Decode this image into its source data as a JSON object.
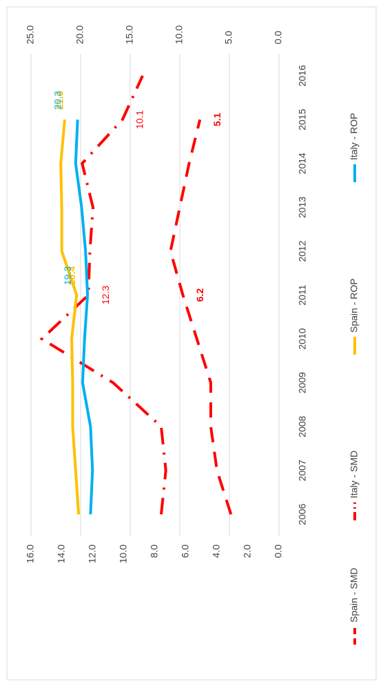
{
  "chart_data": {
    "type": "line",
    "categories": [
      "2006",
      "2007",
      "2008",
      "2009",
      "2010",
      "2011",
      "2012",
      "2013",
      "2014",
      "2015",
      "2016"
    ],
    "series": [
      {
        "name": "Spain - SMD",
        "color": "#ff0000",
        "dash": "dashed",
        "axis": "y",
        "values": [
          3.1,
          4.0,
          4.4,
          4.4,
          5.3,
          6.2,
          7.0,
          6.4,
          5.8,
          5.1,
          null
        ],
        "value_labels": [
          null,
          null,
          null,
          null,
          null,
          "6.2",
          null,
          null,
          null,
          "5.1",
          null
        ]
      },
      {
        "name": "Italy - SMD",
        "color": "#ff0000",
        "dash": "dashdot",
        "axis": "y",
        "values": [
          7.6,
          7.3,
          7.6,
          10.7,
          15.3,
          12.3,
          12.2,
          12.0,
          12.7,
          10.1,
          8.8
        ],
        "value_labels": [
          null,
          null,
          null,
          null,
          null,
          "12.3",
          null,
          null,
          null,
          "10.1",
          null
        ]
      },
      {
        "name": "Spain - ROP",
        "color": "#ffc000",
        "dash": "solid",
        "axis": "y2",
        "values": [
          20.2,
          20.5,
          20.8,
          20.8,
          20.9,
          20.4,
          21.9,
          21.9,
          22.0,
          21.6,
          null
        ],
        "value_labels": [
          null,
          null,
          null,
          null,
          null,
          "20.4",
          null,
          null,
          null,
          "21.6",
          null
        ]
      },
      {
        "name": "Italy - ROP",
        "color": "#00b0f0",
        "dash": "solid",
        "axis": "y2",
        "values": [
          19.0,
          18.8,
          19.0,
          19.8,
          19.6,
          19.3,
          19.5,
          19.9,
          20.5,
          20.3,
          null
        ],
        "value_labels": [
          null,
          null,
          null,
          null,
          null,
          "19.3",
          null,
          null,
          null,
          "20.3",
          null
        ]
      }
    ],
    "ylim": [
      0,
      16
    ],
    "yticks": [
      {
        "value": 0,
        "label": "0.0"
      },
      {
        "value": 2,
        "label": "2.0"
      },
      {
        "value": 4,
        "label": "4.0"
      },
      {
        "value": 6,
        "label": "6.0"
      },
      {
        "value": 8,
        "label": "8.0"
      },
      {
        "value": 10,
        "label": "10.0"
      },
      {
        "value": 12,
        "label": "12.0"
      },
      {
        "value": 14,
        "label": "14.0"
      },
      {
        "value": 16,
        "label": "16.0"
      }
    ],
    "y2lim": [
      0,
      25
    ],
    "y2ticks": [
      {
        "value": 0,
        "label": "0.0"
      },
      {
        "value": 5,
        "label": "5.0"
      },
      {
        "value": 10,
        "label": "10.0"
      },
      {
        "value": 15,
        "label": "15.0"
      },
      {
        "value": 20,
        "label": "20.0"
      },
      {
        "value": 25,
        "label": "25.0"
      }
    ],
    "grid": true,
    "legend": "bottom",
    "rotation": -90
  }
}
